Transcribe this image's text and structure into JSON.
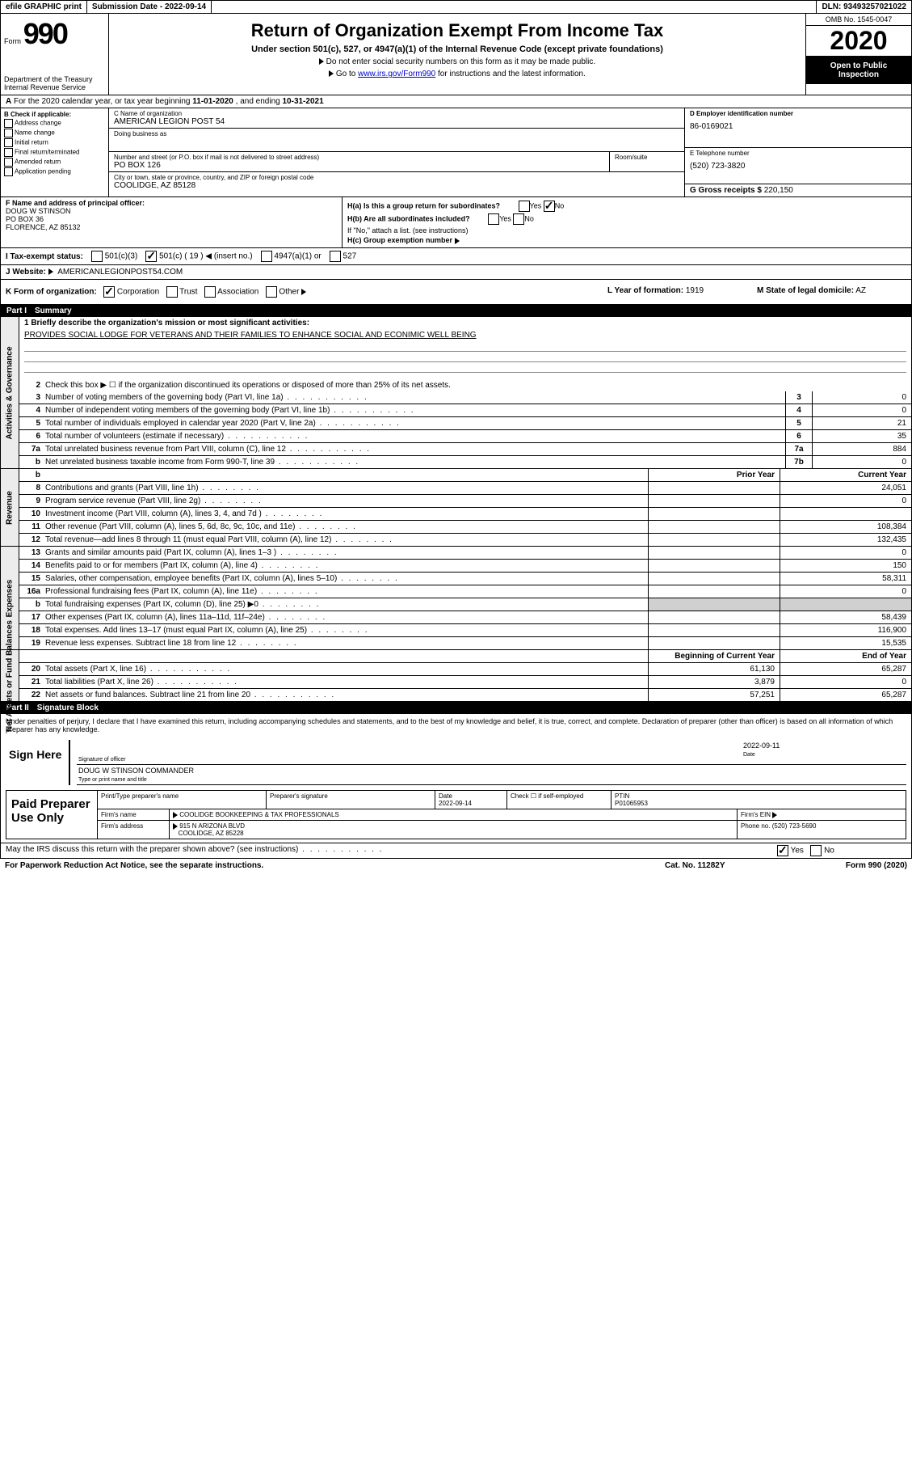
{
  "topbar": {
    "efile": "efile GRAPHIC print",
    "subdate_label": "Submission Date -",
    "subdate": "2022-09-14",
    "dln_label": "DLN:",
    "dln": "93493257021022"
  },
  "header": {
    "form_label": "Form",
    "form_num": "990",
    "dept": "Department of the Treasury\nInternal Revenue Service",
    "title": "Return of Organization Exempt From Income Tax",
    "subtitle": "Under section 501(c), 527, or 4947(a)(1) of the Internal Revenue Code (except private foundations)",
    "instruct1": "Do not enter social security numbers on this form as it may be made public.",
    "instruct2_pre": "Go to ",
    "instruct2_link": "www.irs.gov/Form990",
    "instruct2_post": " for instructions and the latest information.",
    "omb": "OMB No. 1545-0047",
    "year": "2020",
    "inspection": "Open to Public Inspection"
  },
  "rowA_pre": "For the 2020 calendar year, or tax year beginning ",
  "rowA_begin": "11-01-2020",
  "rowA_mid": " , and ending ",
  "rowA_end": "10-31-2021",
  "colB": {
    "header": "B Check if applicable:",
    "items": [
      "Address change",
      "Name change",
      "Initial return",
      "Final return/terminated",
      "Amended return",
      "Application pending"
    ]
  },
  "colC": {
    "name_label": "C Name of organization",
    "name": "AMERICAN LEGION POST 54",
    "dba_label": "Doing business as",
    "dba": "",
    "addr_label": "Number and street (or P.O. box if mail is not delivered to street address)",
    "room_label": "Room/suite",
    "addr": "PO BOX 126",
    "city_label": "City or town, state or province, country, and ZIP or foreign postal code",
    "city": "COOLIDGE, AZ  85128"
  },
  "colD": {
    "ein_label": "D Employer identification number",
    "ein": "86-0169021",
    "phone_label": "E Telephone number",
    "phone": "(520) 723-3820",
    "gross_label": "G Gross receipts $",
    "gross": "220,150"
  },
  "rowF": {
    "label": "F Name and address of principal officer:",
    "name": "DOUG W STINSON",
    "addr1": "PO BOX 36",
    "addr2": "FLORENCE, AZ  85132"
  },
  "rowH": {
    "ha_label": "H(a)  Is this a group return for subordinates?",
    "ha_yes": "Yes",
    "ha_no": "No",
    "hb_label": "H(b)  Are all subordinates included?",
    "hb_yes": "Yes",
    "hb_no": "No",
    "hb_note": "If \"No,\" attach a list. (see instructions)",
    "hc_label": "H(c)  Group exemption number",
    "hc_val": ""
  },
  "rowI": {
    "label": "I   Tax-exempt status:",
    "opt1": "501(c)(3)",
    "opt2": "501(c) ( 19 )",
    "opt2_note": "(insert no.)",
    "opt3": "4947(a)(1) or",
    "opt4": "527"
  },
  "rowJ": {
    "label": "J   Website:",
    "val": "AMERICANLEGIONPOST54.COM"
  },
  "rowK": {
    "label": "K Form of organization:",
    "opts": [
      "Corporation",
      "Trust",
      "Association",
      "Other"
    ],
    "l_label": "L Year of formation:",
    "l_val": "1919",
    "m_label": "M State of legal domicile:",
    "m_val": "AZ"
  },
  "partI": {
    "num": "Part I",
    "name": "Summary"
  },
  "summary": {
    "q1_label": "1   Briefly describe the organization's mission or most significant activities:",
    "q1_val": "PROVIDES SOCIAL LODGE FOR VETERANS AND THEIR FAMILIES TO ENHANCE SOCIAL AND ECONIMIC WELL BEING",
    "q2": "Check this box ▶ ☐  if the organization discontinued its operations or disposed of more than 25% of its net assets.",
    "lines_gov": [
      {
        "n": "3",
        "d": "Number of voting members of the governing body (Part VI, line 1a)",
        "b": "3",
        "v": "0"
      },
      {
        "n": "4",
        "d": "Number of independent voting members of the governing body (Part VI, line 1b)",
        "b": "4",
        "v": "0"
      },
      {
        "n": "5",
        "d": "Total number of individuals employed in calendar year 2020 (Part V, line 2a)",
        "b": "5",
        "v": "21"
      },
      {
        "n": "6",
        "d": "Total number of volunteers (estimate if necessary)",
        "b": "6",
        "v": "35"
      },
      {
        "n": "7a",
        "d": "Total unrelated business revenue from Part VIII, column (C), line 12",
        "b": "7a",
        "v": "884"
      },
      {
        "n": "b",
        "d": "Net unrelated business taxable income from Form 990-T, line 39",
        "b": "7b",
        "v": "0"
      }
    ],
    "prior_hdr": "Prior Year",
    "curr_hdr": "Current Year",
    "rev": [
      {
        "n": "8",
        "d": "Contributions and grants (Part VIII, line 1h)",
        "p": "",
        "c": "24,051"
      },
      {
        "n": "9",
        "d": "Program service revenue (Part VIII, line 2g)",
        "p": "",
        "c": "0"
      },
      {
        "n": "10",
        "d": "Investment income (Part VIII, column (A), lines 3, 4, and 7d )",
        "p": "",
        "c": ""
      },
      {
        "n": "11",
        "d": "Other revenue (Part VIII, column (A), lines 5, 6d, 8c, 9c, 10c, and 11e)",
        "p": "",
        "c": "108,384"
      },
      {
        "n": "12",
        "d": "Total revenue—add lines 8 through 11 (must equal Part VIII, column (A), line 12)",
        "p": "",
        "c": "132,435"
      }
    ],
    "exp": [
      {
        "n": "13",
        "d": "Grants and similar amounts paid (Part IX, column (A), lines 1–3 )",
        "p": "",
        "c": "0"
      },
      {
        "n": "14",
        "d": "Benefits paid to or for members (Part IX, column (A), line 4)",
        "p": "",
        "c": "150"
      },
      {
        "n": "15",
        "d": "Salaries, other compensation, employee benefits (Part IX, column (A), lines 5–10)",
        "p": "",
        "c": "58,311"
      },
      {
        "n": "16a",
        "d": "Professional fundraising fees (Part IX, column (A), line 11e)",
        "p": "",
        "c": "0"
      },
      {
        "n": "b",
        "d": "Total fundraising expenses (Part IX, column (D), line 25) ▶0",
        "p": "grey",
        "c": "grey"
      },
      {
        "n": "17",
        "d": "Other expenses (Part IX, column (A), lines 11a–11d, 11f–24e)",
        "p": "",
        "c": "58,439"
      },
      {
        "n": "18",
        "d": "Total expenses. Add lines 13–17 (must equal Part IX, column (A), line 25)",
        "p": "",
        "c": "116,900"
      },
      {
        "n": "19",
        "d": "Revenue less expenses. Subtract line 18 from line 12",
        "p": "",
        "c": "15,535"
      }
    ],
    "boy_hdr": "Beginning of Current Year",
    "eoy_hdr": "End of Year",
    "net": [
      {
        "n": "20",
        "d": "Total assets (Part X, line 16)",
        "p": "61,130",
        "c": "65,287"
      },
      {
        "n": "21",
        "d": "Total liabilities (Part X, line 26)",
        "p": "3,879",
        "c": "0"
      },
      {
        "n": "22",
        "d": "Net assets or fund balances. Subtract line 21 from line 20",
        "p": "57,251",
        "c": "65,287"
      }
    ]
  },
  "partII": {
    "num": "Part II",
    "name": "Signature Block"
  },
  "sig": {
    "perjury": "Under penalties of perjury, I declare that I have examined this return, including accompanying schedules and statements, and to the best of my knowledge and belief, it is true, correct, and complete. Declaration of preparer (other than officer) is based on all information of which preparer has any knowledge.",
    "sign_here": "Sign Here",
    "sig_officer": "Signature of officer",
    "sig_date_label": "Date",
    "sig_date": "2022-09-11",
    "name_title": "DOUG W STINSON  COMMANDER",
    "name_title_label": "Type or print name and title"
  },
  "prep": {
    "title": "Paid Preparer Use Only",
    "h1": "Print/Type preparer's name",
    "h2": "Preparer's signature",
    "h3_label": "Date",
    "h3": "2022-09-14",
    "h4_label": "Check ☐ if self-employed",
    "h5_label": "PTIN",
    "h5": "P01065953",
    "firm_label": "Firm's name",
    "firm": "COOLIDGE BOOKKEEPING & TAX PROFESSIONALS",
    "ein_label": "Firm's EIN",
    "addr_label": "Firm's address",
    "addr1": "915 N ARIZONA BLVD",
    "addr2": "COOLIDGE, AZ  85228",
    "phone_label": "Phone no.",
    "phone": "(520) 723-5690"
  },
  "discuss": {
    "q": "May the IRS discuss this return with the preparer shown above? (see instructions)",
    "yes": "Yes",
    "no": "No"
  },
  "footer": {
    "left": "For Paperwork Reduction Act Notice, see the separate instructions.",
    "mid": "Cat. No. 11282Y",
    "right": "Form 990 (2020)"
  },
  "colors": {
    "black": "#000000",
    "white": "#ffffff",
    "grey": "#d0d0d0",
    "lightgrey": "#ececec",
    "link": "#0000cc"
  }
}
